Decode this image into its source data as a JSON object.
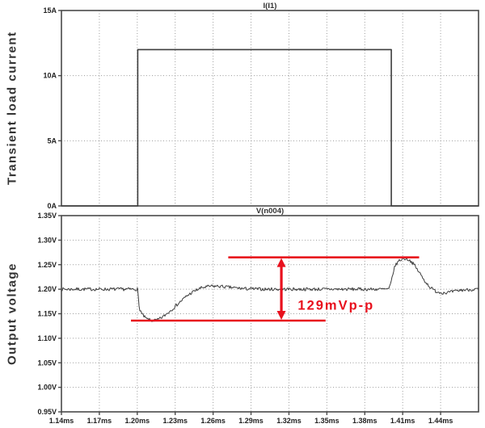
{
  "side_labels": {
    "top": "Transient load current",
    "bottom": "Output voltage"
  },
  "colors": {
    "background": "#ffffff",
    "trace": "#3c3c3c",
    "axis": "#4a4a4a",
    "grid": "#9a9a9a",
    "tick_label": "#222222",
    "pane_title": "#333333",
    "side_label": "#333333",
    "annotation_red": "#e8101d"
  },
  "chart_data": [
    {
      "type": "line",
      "title": "I(I1)",
      "xlabel": "",
      "ylabel": "Transient load current",
      "x_unit": "ms",
      "xlim": [
        1.14,
        1.47
      ],
      "ylim": [
        0,
        15
      ],
      "grid": true,
      "x_ticks": [
        {
          "v": 1.14,
          "label": "1.14ms"
        },
        {
          "v": 1.17,
          "label": "1.17ms"
        },
        {
          "v": 1.2,
          "label": "1.20ms"
        },
        {
          "v": 1.23,
          "label": "1.23ms"
        },
        {
          "v": 1.26,
          "label": "1.26ms"
        },
        {
          "v": 1.29,
          "label": "1.29ms"
        },
        {
          "v": 1.32,
          "label": "1.32ms"
        },
        {
          "v": 1.35,
          "label": "1.35ms"
        },
        {
          "v": 1.38,
          "label": "1.38ms"
        },
        {
          "v": 1.41,
          "label": "1.41ms"
        },
        {
          "v": 1.44,
          "label": "1.44ms"
        }
      ],
      "show_x_labels": false,
      "y_ticks": [
        {
          "v": 0,
          "label": "0A"
        },
        {
          "v": 5,
          "label": "5A"
        },
        {
          "v": 10,
          "label": "10A"
        },
        {
          "v": 15,
          "label": "15A"
        }
      ],
      "series": [
        {
          "name": "I(I1)",
          "noisy": false,
          "noise_amp": 0,
          "points": [
            [
              1.14,
              0
            ],
            [
              1.2004,
              0
            ],
            [
              1.2004,
              12
            ],
            [
              1.401,
              12
            ],
            [
              1.401,
              0
            ],
            [
              1.47,
              0
            ]
          ]
        }
      ],
      "annotations": null
    },
    {
      "type": "line",
      "title": "V(n004)",
      "xlabel": "",
      "ylabel": "Output voltage",
      "x_unit": "ms",
      "xlim": [
        1.14,
        1.47
      ],
      "ylim": [
        0.95,
        1.35
      ],
      "grid": true,
      "x_ticks": [
        {
          "v": 1.14,
          "label": "1.14ms"
        },
        {
          "v": 1.17,
          "label": "1.17ms"
        },
        {
          "v": 1.2,
          "label": "1.20ms"
        },
        {
          "v": 1.23,
          "label": "1.23ms"
        },
        {
          "v": 1.26,
          "label": "1.26ms"
        },
        {
          "v": 1.29,
          "label": "1.29ms"
        },
        {
          "v": 1.32,
          "label": "1.32ms"
        },
        {
          "v": 1.35,
          "label": "1.35ms"
        },
        {
          "v": 1.38,
          "label": "1.38ms"
        },
        {
          "v": 1.41,
          "label": "1.41ms"
        },
        {
          "v": 1.44,
          "label": "1.44ms"
        }
      ],
      "show_x_labels": true,
      "y_ticks": [
        {
          "v": 0.95,
          "label": "0.95V"
        },
        {
          "v": 1.0,
          "label": "1.00V"
        },
        {
          "v": 1.05,
          "label": "1.05V"
        },
        {
          "v": 1.1,
          "label": "1.10V"
        },
        {
          "v": 1.15,
          "label": "1.15V"
        },
        {
          "v": 1.2,
          "label": "1.20V"
        },
        {
          "v": 1.25,
          "label": "1.25V"
        },
        {
          "v": 1.3,
          "label": "1.30V"
        },
        {
          "v": 1.35,
          "label": "1.35V"
        }
      ],
      "series": [
        {
          "name": "V(n004)",
          "noisy": true,
          "noise_amp": 0.0033,
          "points": [
            [
              1.14,
              1.2
            ],
            [
              1.2003,
              1.2
            ],
            [
              1.2015,
              1.162
            ],
            [
              1.204,
              1.148
            ],
            [
              1.207,
              1.14
            ],
            [
              1.211,
              1.136
            ],
            [
              1.216,
              1.137
            ],
            [
              1.221,
              1.145
            ],
            [
              1.227,
              1.158
            ],
            [
              1.233,
              1.172
            ],
            [
              1.239,
              1.186
            ],
            [
              1.245,
              1.196
            ],
            [
              1.251,
              1.203
            ],
            [
              1.258,
              1.206
            ],
            [
              1.265,
              1.206
            ],
            [
              1.272,
              1.204
            ],
            [
              1.285,
              1.201
            ],
            [
              1.3,
              1.2
            ],
            [
              1.399,
              1.2
            ],
            [
              1.4005,
              1.21
            ],
            [
              1.402,
              1.23
            ],
            [
              1.404,
              1.248
            ],
            [
              1.407,
              1.258
            ],
            [
              1.41,
              1.262
            ],
            [
              1.413,
              1.2625
            ],
            [
              1.416,
              1.258
            ],
            [
              1.419,
              1.25
            ],
            [
              1.4215,
              1.24
            ],
            [
              1.4235,
              1.233
            ],
            [
              1.426,
              1.222
            ],
            [
              1.429,
              1.212
            ],
            [
              1.432,
              1.203
            ],
            [
              1.436,
              1.196
            ],
            [
              1.44,
              1.193
            ],
            [
              1.445,
              1.193
            ],
            [
              1.45,
              1.195
            ],
            [
              1.456,
              1.198
            ],
            [
              1.462,
              1.199
            ],
            [
              1.47,
              1.2
            ]
          ]
        }
      ],
      "annotations": {
        "label": "129mVp-p",
        "upper_line": {
          "v": 1.265,
          "t_start": 1.272,
          "t_end": 1.423
        },
        "lower_line": {
          "v": 1.136,
          "t_start": 1.195,
          "t_end": 1.349
        },
        "arrow_t": 1.314,
        "label_pos": {
          "t": 1.327,
          "v": 1.158
        }
      }
    }
  ]
}
